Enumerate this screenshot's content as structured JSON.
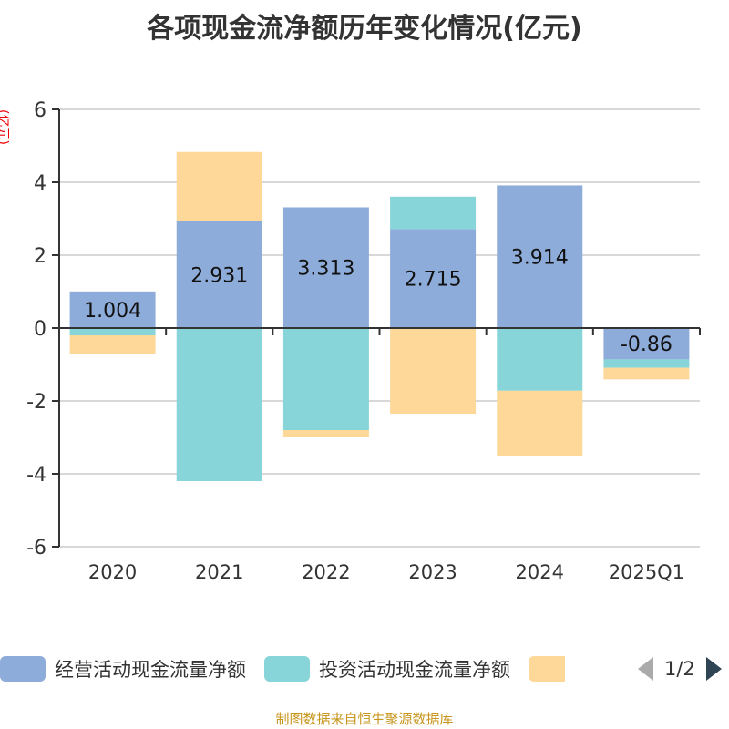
{
  "title": "各项现金流净额历年变化情况(亿元)",
  "source": "制图数据来自恒生聚源数据库",
  "chart_data": {
    "type": "bar",
    "stacked": true,
    "title": "各项现金流净额历年变化情况(亿元)",
    "ylabel": "(亿元)",
    "ylim": [
      -6,
      6
    ],
    "yticks": [
      6,
      4,
      2,
      0,
      -2,
      -4,
      -6
    ],
    "grid": true,
    "legend_position": "bottom",
    "categories": [
      "2020",
      "2021",
      "2022",
      "2023",
      "2024",
      "2025Q1"
    ],
    "series": [
      {
        "name": "经营活动现金流量净额",
        "color": "#8eacd9",
        "values": [
          1.004,
          2.931,
          3.313,
          2.715,
          3.914,
          -0.86
        ],
        "labels": [
          "1.004",
          "2.931",
          "3.313",
          "2.715",
          "3.914",
          "-0.86"
        ]
      },
      {
        "name": "投资活动现金流量净额",
        "color": "#87d5d8",
        "values": [
          -0.2,
          -4.2,
          -2.8,
          0.89,
          -1.72,
          -0.23
        ]
      },
      {
        "name": "",
        "color": "#fed899",
        "values": [
          -0.5,
          1.9,
          -0.2,
          -2.35,
          -1.78,
          -0.32
        ]
      }
    ]
  },
  "legend": {
    "page": "1/2"
  }
}
